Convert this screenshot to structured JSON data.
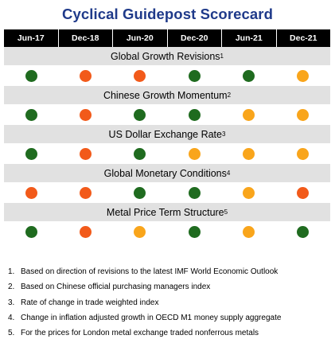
{
  "title": "Cyclical Guidepost Scorecard",
  "colors": {
    "green": "#1f6b1f",
    "red": "#f25a1a",
    "orange": "#f9a51b",
    "header_bg": "#000000",
    "label_bg": "#e1e1e1",
    "title": "#1f3a8a"
  },
  "chart_data": {
    "type": "table",
    "columns": [
      "Jun-17",
      "Dec-18",
      "Jun-20",
      "Dec-20",
      "Jun-21",
      "Dec-21"
    ],
    "rows": [
      {
        "label": "Global Growth Revisions",
        "note": "1",
        "status": [
          "green",
          "red",
          "red",
          "green",
          "green",
          "orange"
        ]
      },
      {
        "label": "Chinese Growth Momentum",
        "note": "2",
        "status": [
          "green",
          "red",
          "green",
          "green",
          "orange",
          "orange"
        ]
      },
      {
        "label": "US Dollar Exchange Rate",
        "note": "3",
        "status": [
          "green",
          "red",
          "green",
          "orange",
          "orange",
          "orange"
        ]
      },
      {
        "label": "Global Monetary Conditions",
        "note": "4",
        "status": [
          "red",
          "red",
          "green",
          "green",
          "orange",
          "red"
        ]
      },
      {
        "label": "Metal Price Term Structure",
        "note": "5",
        "status": [
          "green",
          "red",
          "orange",
          "green",
          "orange",
          "green"
        ]
      }
    ]
  },
  "footnotes": [
    {
      "num": "1.",
      "text": "Based on direction of revisions to the latest IMF World Economic Outlook"
    },
    {
      "num": "2.",
      "text": "Based on Chinese official purchasing managers index"
    },
    {
      "num": "3.",
      "text": "Rate of change in trade weighted index"
    },
    {
      "num": "4.",
      "text": "Change in inflation adjusted growth in OECD M1 money supply aggregate"
    },
    {
      "num": "5.",
      "text": "For the prices for London metal exchange traded nonferrous metals"
    }
  ]
}
